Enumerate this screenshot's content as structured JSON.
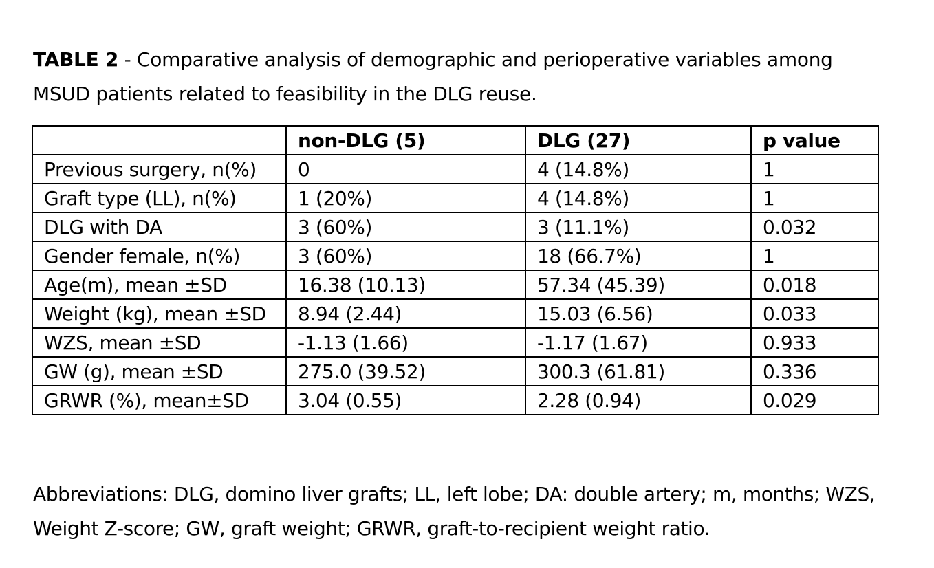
{
  "caption": {
    "label": "TABLE 2",
    "text": " - Comparative analysis of demographic and perioperative variables among MSUD patients related to feasibility in the DLG reuse."
  },
  "table": {
    "headers": [
      "",
      "non-DLG (5)",
      "DLG (27)",
      "p value"
    ],
    "rows": [
      [
        "Previous surgery, n(%)",
        "0",
        "4 (14.8%)",
        "1"
      ],
      [
        "Graft type (LL), n(%)",
        "1 (20%)",
        "4 (14.8%)",
        "1"
      ],
      [
        "DLG with DA",
        "3 (60%)",
        "3 (11.1%)",
        "0.032"
      ],
      [
        "Gender female, n(%)",
        "3 (60%)",
        "18 (66.7%)",
        "1"
      ],
      [
        "Age(m), mean ±SD",
        "16.38 (10.13)",
        "57.34 (45.39)",
        "0.018"
      ],
      [
        "Weight (kg), mean ±SD",
        "8.94 (2.44)",
        "15.03 (6.56)",
        "0.033"
      ],
      [
        "WZS, mean ±SD",
        "-1.13 (1.66)",
        "-1.17 (1.67)",
        "0.933"
      ],
      [
        "GW (g), mean ±SD",
        "275.0 (39.52)",
        "300.3 (61.81)",
        "0.336"
      ],
      [
        "GRWR (%), mean±SD",
        "3.04 (0.55)",
        "2.28 (0.94)",
        "0.029"
      ]
    ]
  },
  "abbreviations": "Abbreviations: DLG, domino liver grafts; LL, left lobe; DA: double artery; m, months; WZS, Weight Z-score; GW, graft weight; GRWR, graft-to-recipient weight ratio."
}
